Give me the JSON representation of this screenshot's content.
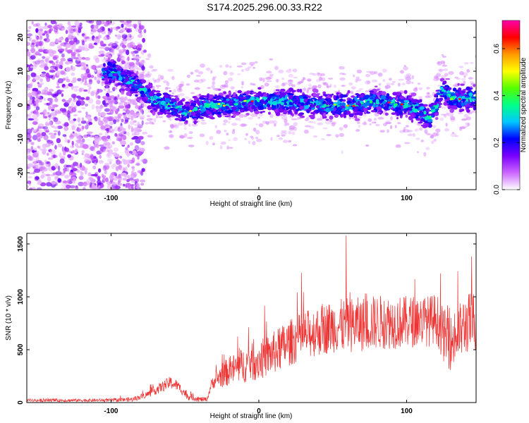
{
  "title": "S174.2025.296.00.33.R22",
  "chart_data": [
    {
      "type": "heatmap",
      "name": "spectrogram",
      "xlabel": "Height of straight line (km)",
      "ylabel": "Frequency (Hz)",
      "xlim": [
        -157,
        147
      ],
      "ylim": [
        -25,
        25
      ],
      "x_ticks": [
        -100,
        0,
        100
      ],
      "y_ticks": [
        -20,
        -10,
        0,
        10,
        20
      ],
      "x_tick_labels": [
        "-100",
        "0",
        "100"
      ],
      "y_tick_labels": [
        "-20",
        "-10",
        "0",
        "10",
        "20"
      ],
      "colorbar": {
        "label": "Normalized spectral amplitude",
        "range": [
          0,
          0.72
        ],
        "ticks": [
          0,
          0.2,
          0.4,
          0.6
        ],
        "tick_labels": [
          "0.0",
          "0.2",
          "0.4",
          "0.6"
        ],
        "colors": [
          "#ffffff",
          "#cc66ff",
          "#7a00ff",
          "#0000ff",
          "#00c8ff",
          "#00ff88",
          "#55ff00",
          "#ffff00",
          "#ff9900",
          "#ff0000",
          "#ff00aa"
        ]
      },
      "ridge": {
        "x": [
          -157,
          -130,
          -100,
          -90,
          -80,
          -70,
          -60,
          -50,
          -40,
          -30,
          -20,
          -10,
          0,
          20,
          40,
          60,
          80,
          100,
          110,
          115,
          120,
          125,
          130,
          147
        ],
        "freq": [
          4,
          5,
          10,
          8,
          5,
          1,
          0,
          -2,
          -1,
          0,
          0,
          1,
          1,
          1,
          0,
          0,
          1,
          0,
          -2,
          -4,
          0,
          5,
          2,
          2
        ]
      },
      "peak_amplitude": 0.72
    },
    {
      "type": "line",
      "name": "snr",
      "xlabel": "Height of straight line (km)",
      "ylabel": "SNR (10 * v/v)",
      "xlim": [
        -157,
        147
      ],
      "ylim": [
        0,
        1600
      ],
      "x_ticks": [
        -100,
        0,
        100
      ],
      "y_ticks": [
        0,
        500,
        1000,
        1500
      ],
      "x_tick_labels": [
        "-100",
        "0",
        "100"
      ],
      "y_tick_labels": [
        "0",
        "500",
        "1000",
        "1500"
      ],
      "series": [
        {
          "name": "SNR",
          "color": "#ee3333",
          "trend_x": [
            -157,
            -100,
            -85,
            -75,
            -68,
            -60,
            -55,
            -48,
            -40,
            -35,
            -32,
            -25,
            -15,
            -5,
            0,
            10,
            20,
            30,
            40,
            50,
            60,
            70,
            80,
            90,
            100,
            110,
            115,
            120,
            125,
            130,
            135,
            140,
            147
          ],
          "trend_y": [
            20,
            22,
            30,
            80,
            130,
            190,
            160,
            60,
            30,
            30,
            180,
            260,
            330,
            380,
            400,
            470,
            560,
            630,
            680,
            720,
            730,
            740,
            760,
            760,
            760,
            780,
            770,
            800,
            640,
            560,
            650,
            740,
            780
          ],
          "noise_x": [
            -157,
            -100,
            -80,
            -60,
            -45,
            -35,
            -25,
            -10,
            0,
            20,
            40,
            60,
            80,
            100,
            120,
            130,
            147
          ],
          "noise_amp": [
            15,
            15,
            25,
            60,
            30,
            20,
            120,
            170,
            190,
            220,
            240,
            260,
            260,
            250,
            240,
            270,
            300
          ],
          "peak": {
            "x": 59,
            "y": 1580
          }
        }
      ]
    }
  ]
}
